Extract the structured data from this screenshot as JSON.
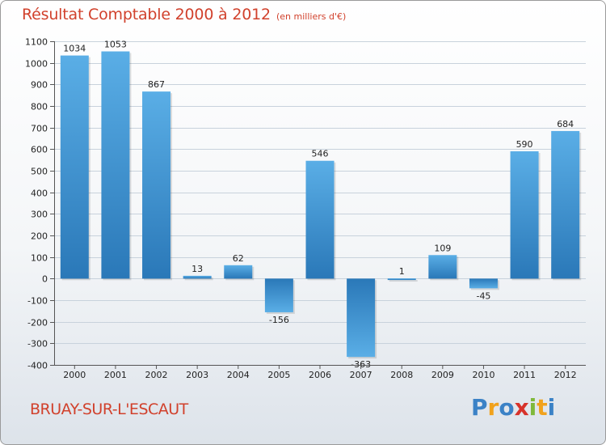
{
  "header": {
    "title": "Résultat Comptable 2000 à 2012",
    "subtitle": "(en milliers d'€)"
  },
  "footer": {
    "town": "BRUAY-SUR-L'ESCAUT",
    "logo_letters": [
      "P",
      "r",
      "o",
      "x",
      "i",
      "t",
      "i"
    ],
    "logo_colors": [
      "#3b82c6",
      "#f1a21c",
      "#3b82c6",
      "#d7322a",
      "#7fb93a",
      "#f1a21c",
      "#3b82c6"
    ]
  },
  "colors": {
    "bar_light": "#5aaee6",
    "bar_dark": "#2a78b8",
    "grid": "#c8d2dc",
    "text": "#222222"
  },
  "chart_data": {
    "type": "bar",
    "title": "Résultat Comptable 2000 à 2012",
    "xlabel": "",
    "ylabel": "",
    "categories": [
      "2000",
      "2001",
      "2002",
      "2003",
      "2004",
      "2005",
      "2006",
      "2007",
      "2008",
      "2009",
      "2010",
      "2011",
      "2012"
    ],
    "values": [
      1034,
      1053,
      867,
      13,
      62,
      -156,
      546,
      -363,
      1,
      109,
      -45,
      590,
      684
    ],
    "ylim": [
      -400,
      1100
    ],
    "yticks": [
      -400,
      -300,
      -200,
      -100,
      0,
      100,
      200,
      300,
      400,
      500,
      600,
      700,
      800,
      900,
      1000,
      1100
    ],
    "grid": true
  }
}
